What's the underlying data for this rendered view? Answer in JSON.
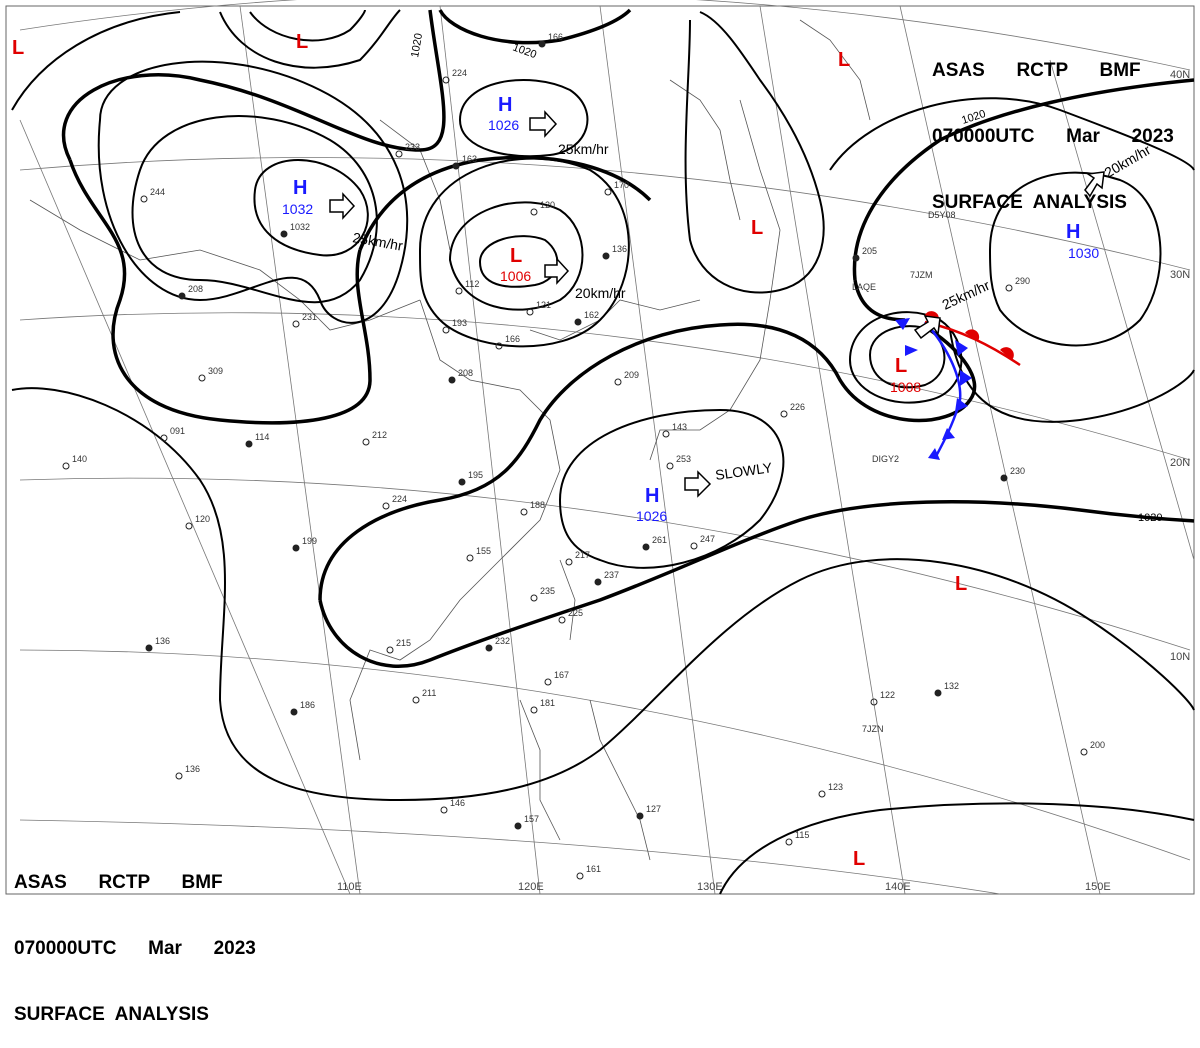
{
  "header_top": {
    "line1": "ASAS      RCTP      BMF",
    "line2": "070000UTC      Mar      2023",
    "line3": "SURFACE  ANALYSIS"
  },
  "header_bottom": {
    "line1": "ASAS      RCTP      BMF",
    "line2": "070000UTC      Mar      2023",
    "line3": "SURFACE  ANALYSIS"
  },
  "latitude_labels": [
    "40N",
    "30N",
    "20N",
    "10N"
  ],
  "longitude_labels": [
    "110E",
    "120E",
    "130E",
    "140E",
    "150E"
  ],
  "contour_labels": [
    "1020",
    "1020",
    "1020",
    "1020"
  ],
  "pressure_systems": [
    {
      "type": "H",
      "value": "1026"
    },
    {
      "type": "H",
      "value": "1032"
    },
    {
      "type": "L",
      "value": "1006"
    },
    {
      "type": "H",
      "value": "1026"
    },
    {
      "type": "L",
      "value": "1008"
    },
    {
      "type": "H",
      "value": "1030"
    }
  ],
  "unlabeled_lows": [
    "L",
    "L",
    "L",
    "L",
    "L",
    "L"
  ],
  "motion_labels": [
    "25km/hr",
    "25km/hr",
    "20km/hr",
    "SLOWLY",
    "25km/hr",
    "20km/hr"
  ],
  "station_readings": [
    "166",
    "224",
    "233",
    "163",
    "170",
    "120",
    "136",
    "112",
    "121",
    "162",
    "193",
    "166",
    "208",
    "209",
    "212",
    "195",
    "188",
    "224",
    "199",
    "155",
    "217",
    "237",
    "235",
    "225",
    "232",
    "215",
    "211",
    "186",
    "167",
    "181",
    "157",
    "146",
    "161",
    "127",
    "143",
    "253",
    "261",
    "247",
    "226",
    "230",
    "200",
    "122",
    "132",
    "123",
    "115",
    "205",
    "290",
    "091",
    "114",
    "140",
    "120",
    "136",
    "136",
    "309",
    "208",
    "231",
    "244",
    "1032"
  ],
  "station_ids": [
    "D5Y08",
    "7JZM",
    "LAQE",
    "DIGY2",
    "7JZN"
  ],
  "colors": {
    "high": "#1a1aff",
    "low": "#e00000",
    "front_cold": "#1a1aff",
    "front_warm": "#e00000",
    "isobar": "#000000"
  }
}
